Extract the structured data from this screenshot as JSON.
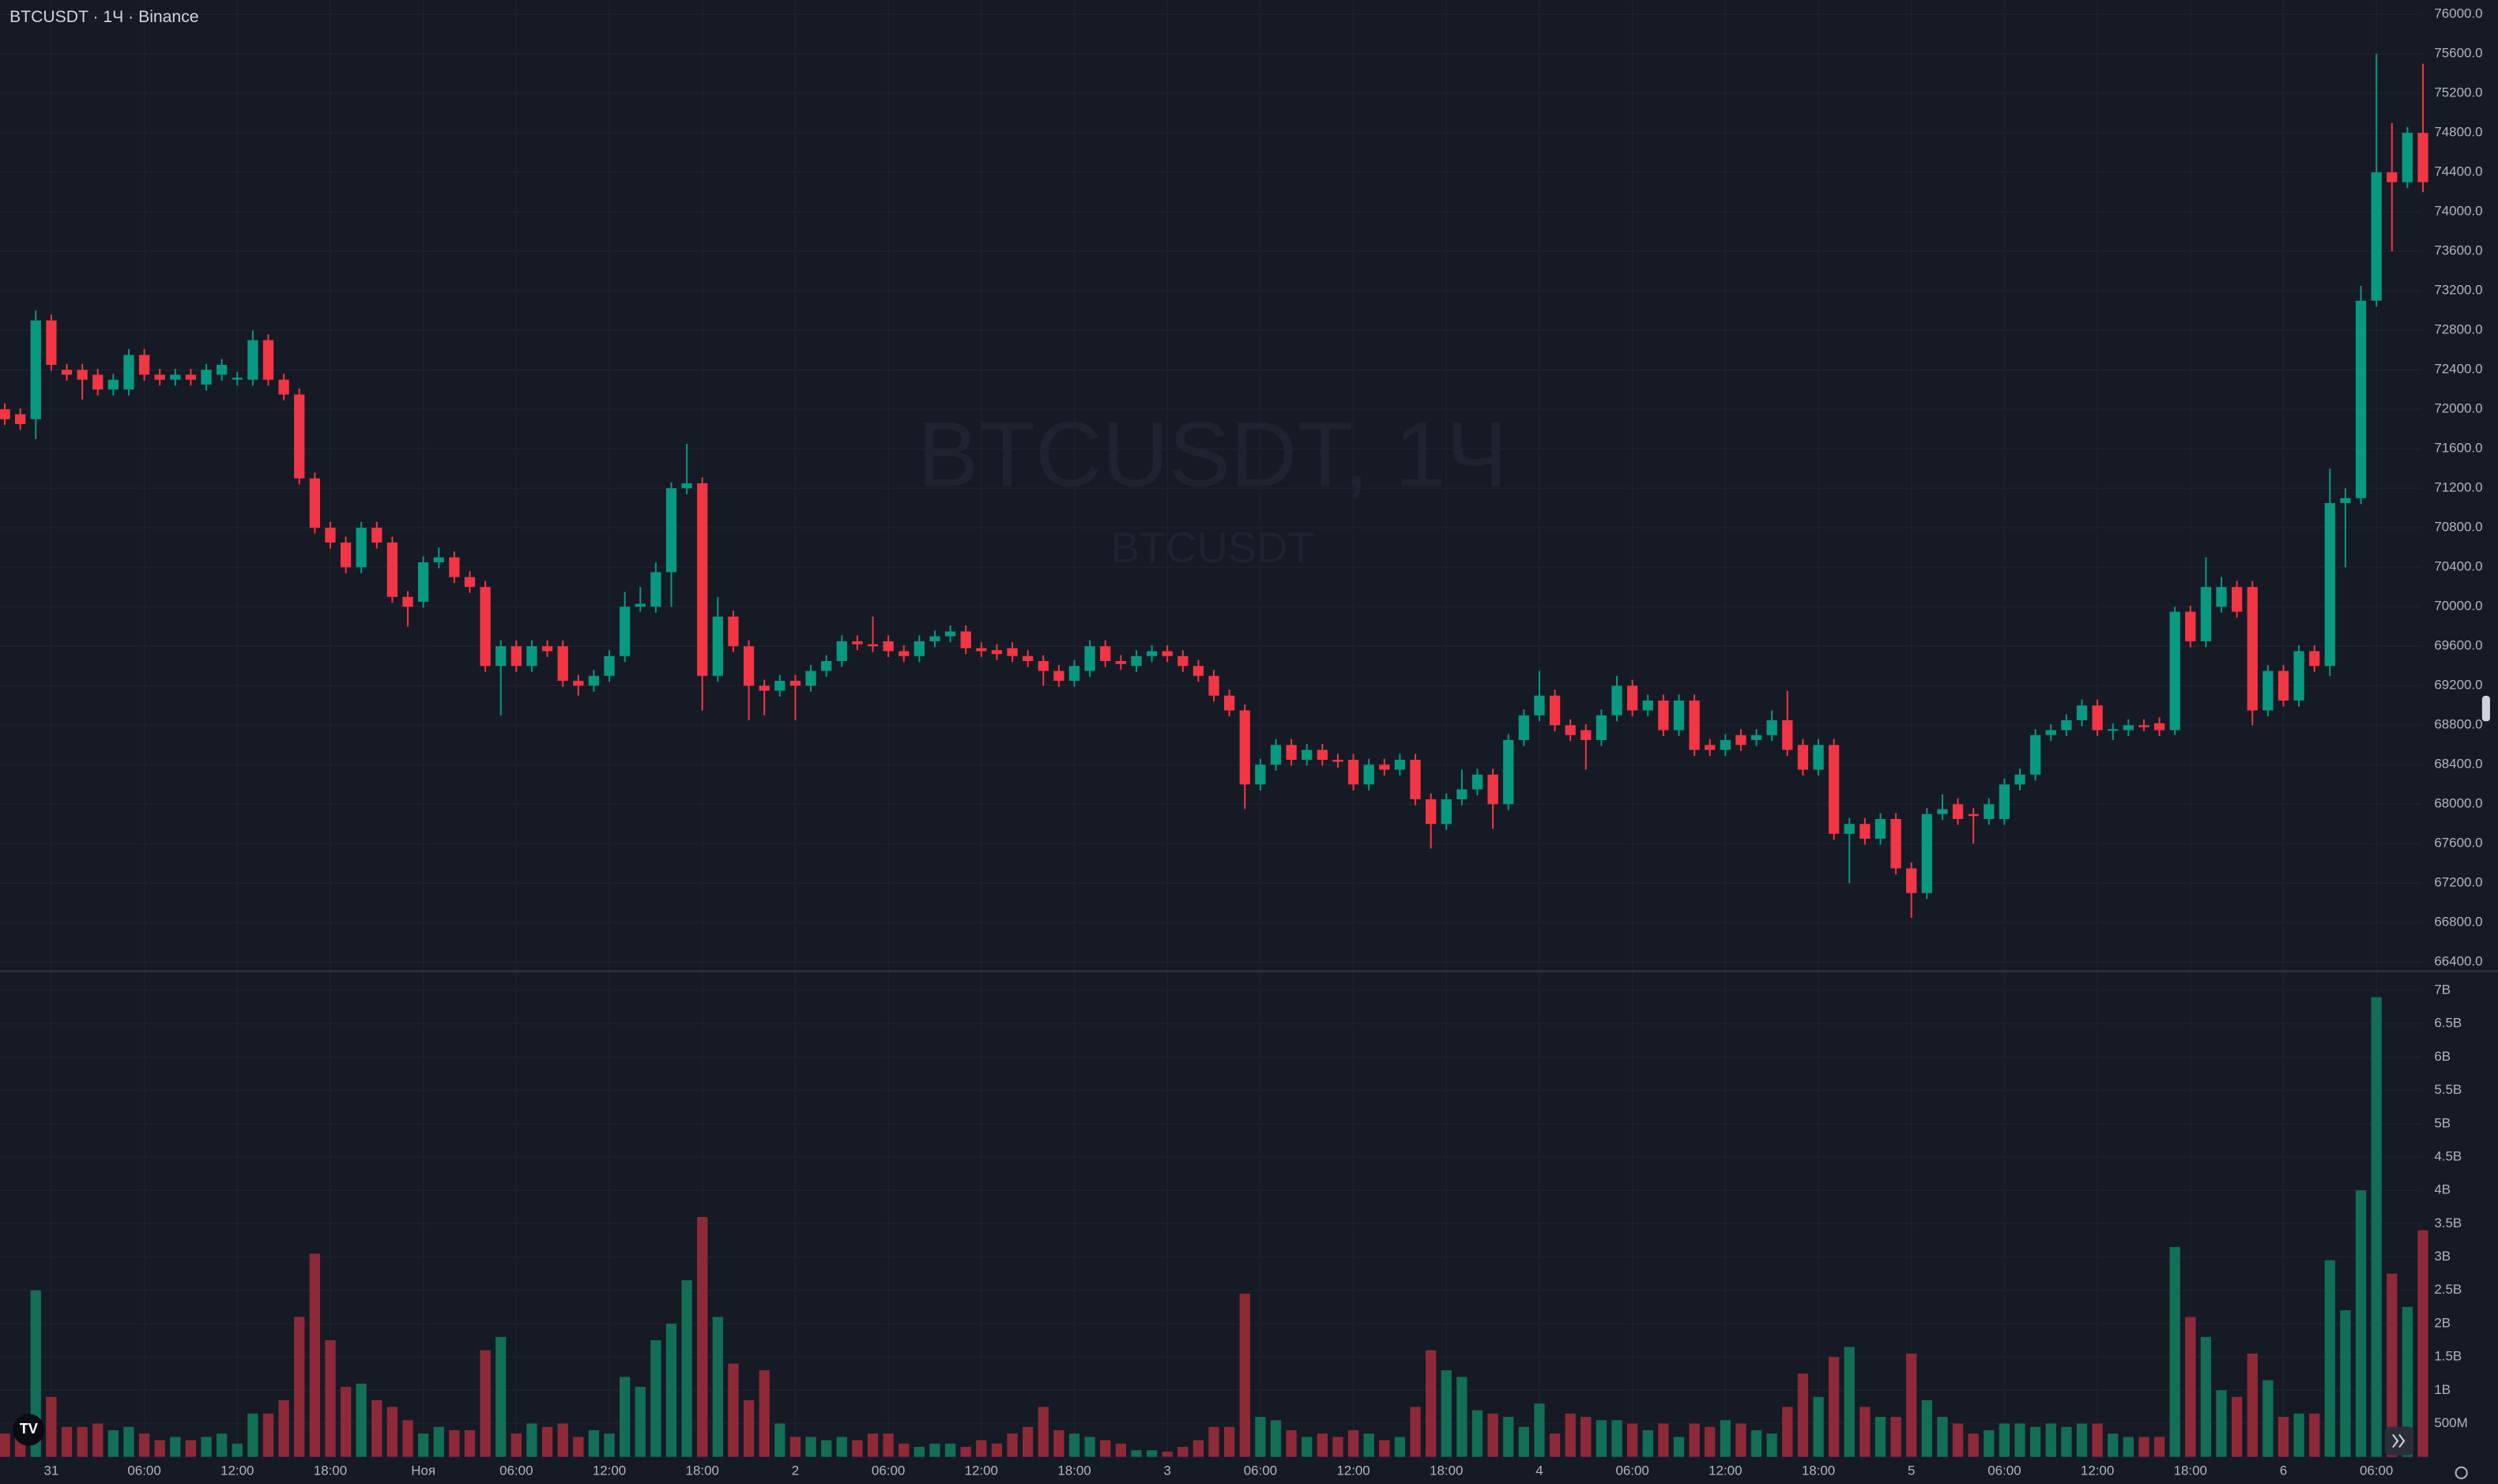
{
  "chart_data": {
    "type": "candlestick",
    "title": "BTCUSDT · 1Ч · Binance",
    "watermark": [
      "BTCUSDT, 1Ч",
      "BTCUSDT"
    ],
    "up_color": "#089981",
    "down_color": "#f23645",
    "grid": true,
    "categories": [
      null,
      null,
      null,
      "31",
      null,
      null,
      null,
      null,
      null,
      "06:00",
      null,
      null,
      null,
      null,
      null,
      "12:00",
      null,
      null,
      null,
      null,
      null,
      "18:00",
      null,
      null,
      null,
      null,
      null,
      "Ноя",
      null,
      null,
      null,
      null,
      null,
      "06:00",
      null,
      null,
      null,
      null,
      null,
      "12:00",
      null,
      null,
      null,
      null,
      null,
      "18:00",
      null,
      null,
      null,
      null,
      null,
      "2",
      null,
      null,
      null,
      null,
      null,
      "06:00",
      null,
      null,
      null,
      null,
      null,
      "12:00",
      null,
      null,
      null,
      null,
      null,
      "18:00",
      null,
      null,
      null,
      null,
      null,
      "3",
      null,
      null,
      null,
      null,
      null,
      "06:00",
      null,
      null,
      null,
      null,
      null,
      "12:00",
      null,
      null,
      null,
      null,
      null,
      "18:00",
      null,
      null,
      null,
      null,
      null,
      "4",
      null,
      null,
      null,
      null,
      null,
      "06:00",
      null,
      null,
      null,
      null,
      null,
      "12:00",
      null,
      null,
      null,
      null,
      null,
      "18:00",
      null,
      null,
      null,
      null,
      null,
      "5",
      null,
      null,
      null,
      null,
      null,
      "06:00",
      null,
      null,
      null,
      null,
      null,
      "12:00",
      null,
      null,
      null,
      null,
      null,
      "18:00",
      null,
      null,
      null,
      null,
      null,
      "6",
      null,
      null,
      null,
      null,
      null,
      "06:00",
      null,
      null,
      null
    ],
    "open": [
      72000,
      71950,
      71900,
      72900,
      72400,
      72400,
      72350,
      72200,
      72200,
      72550,
      72350,
      72300,
      72350,
      72250,
      72350,
      72300,
      72300,
      72700,
      72300,
      72150,
      71300,
      70800,
      70650,
      70400,
      70800,
      70650,
      70100,
      70050,
      70450,
      70500,
      70300,
      70200,
      69400,
      69600,
      69400,
      69600,
      69600,
      69250,
      69200,
      69300,
      69500,
      70000,
      70000,
      70350,
      71200,
      71250,
      69300,
      69900,
      69600,
      69200,
      69150,
      69250,
      69200,
      69350,
      69450,
      69650,
      69620,
      69650,
      69550,
      69500,
      69650,
      69700,
      69750,
      69580,
      69560,
      69580,
      69500,
      69450,
      69350,
      69250,
      69350,
      69600,
      69450,
      69400,
      69500,
      69550,
      69500,
      69400,
      69300,
      69100,
      68950,
      68200,
      68400,
      68600,
      68450,
      68550,
      68450,
      68450,
      68200,
      68400,
      68350,
      68450,
      68050,
      67800,
      68050,
      68150,
      68300,
      68000,
      68650,
      68900,
      69100,
      68800,
      68750,
      68650,
      68900,
      69200,
      68950,
      69050,
      68750,
      69050,
      68600,
      68550,
      68700,
      68650,
      68700,
      68850,
      68600,
      68350,
      68600,
      67700,
      67800,
      67650,
      67850,
      67350,
      67100,
      67900,
      68000,
      67900,
      67850,
      67850,
      68200,
      68300,
      68700,
      68750,
      68850,
      69000,
      68750,
      68750,
      68800,
      68820,
      68750,
      69950,
      69650,
      70000,
      70200,
      70200,
      68950,
      69350,
      69050,
      69550,
      69400,
      71050,
      71100,
      73100,
      74400,
      74300,
      74800
    ],
    "high": [
      72060,
      72010,
      73000,
      72960,
      72460,
      72460,
      72410,
      72360,
      72610,
      72610,
      72410,
      72410,
      72410,
      72460,
      72510,
      72380,
      72800,
      72760,
      72360,
      72210,
      71360,
      70860,
      70710,
      70860,
      70860,
      70710,
      70160,
      70510,
      70600,
      70560,
      70360,
      70260,
      69660,
      69660,
      69660,
      69660,
      69660,
      69310,
      69360,
      69560,
      70150,
      70200,
      70450,
      71260,
      71650,
      71310,
      70100,
      69960,
      69660,
      69260,
      69310,
      69310,
      69410,
      69510,
      69710,
      69710,
      69900,
      69710,
      69610,
      69710,
      69760,
      69810,
      69810,
      69640,
      69620,
      69640,
      69560,
      69510,
      69410,
      69460,
      69660,
      69660,
      69510,
      69560,
      69610,
      69610,
      69560,
      69460,
      69360,
      69160,
      69010,
      68460,
      68660,
      68660,
      68610,
      68610,
      68510,
      68510,
      68460,
      68460,
      68510,
      68510,
      68110,
      68110,
      68350,
      68360,
      68360,
      68710,
      68960,
      69350,
      69160,
      68860,
      68810,
      68960,
      69300,
      69260,
      69110,
      69110,
      69110,
      69110,
      68660,
      68710,
      68760,
      68760,
      68950,
      69150,
      68660,
      68660,
      68660,
      67860,
      67860,
      67910,
      67910,
      67410,
      67960,
      68100,
      68060,
      67960,
      68060,
      68260,
      68360,
      68760,
      68810,
      68910,
      69060,
      69060,
      68820,
      68860,
      68860,
      68880,
      70000,
      70010,
      70500,
      70300,
      70260,
      70260,
      69410,
      69410,
      69610,
      69610,
      71400,
      71200,
      73250,
      75600,
      74900,
      74860,
      75500
    ],
    "low": [
      71840,
      71790,
      71700,
      72390,
      72290,
      72100,
      72140,
      72140,
      72140,
      72290,
      72240,
      72240,
      72240,
      72190,
      72290,
      72240,
      72240,
      72240,
      72090,
      71240,
      70740,
      70590,
      70340,
      70340,
      70590,
      70040,
      69800,
      69990,
      70390,
      70240,
      70140,
      69340,
      68900,
      69340,
      69340,
      69490,
      69190,
      69100,
      69140,
      69240,
      69440,
      69950,
      69940,
      70000,
      71140,
      68950,
      69240,
      69540,
      68850,
      68900,
      69090,
      68850,
      69140,
      69290,
      69390,
      69560,
      69540,
      69490,
      69440,
      69440,
      69590,
      69640,
      69520,
      69490,
      69460,
      69440,
      69390,
      69200,
      69190,
      69190,
      69290,
      69390,
      69360,
      69340,
      69440,
      69440,
      69340,
      69240,
      69040,
      68890,
      67950,
      68140,
      68340,
      68390,
      68390,
      68390,
      68370,
      68140,
      68140,
      68290,
      68290,
      67990,
      67550,
      67740,
      67990,
      68090,
      67750,
      67940,
      68590,
      68840,
      68740,
      68640,
      68350,
      68590,
      68840,
      68890,
      68890,
      68690,
      68690,
      68490,
      68490,
      68490,
      68540,
      68590,
      68640,
      68490,
      68290,
      68290,
      67640,
      67200,
      67590,
      67590,
      67290,
      66850,
      67040,
      67840,
      67790,
      67600,
      67790,
      67790,
      68140,
      68240,
      68640,
      68690,
      68790,
      68690,
      68650,
      68690,
      68740,
      68690,
      68700,
      69590,
      69590,
      69940,
      69890,
      68800,
      68890,
      68990,
      68990,
      69340,
      69300,
      70400,
      71040,
      73040,
      73600,
      74240,
      74200
    ],
    "close": [
      71900,
      71850,
      72900,
      72450,
      72350,
      72300,
      72200,
      72300,
      72550,
      72350,
      72300,
      72350,
      72300,
      72400,
      72450,
      72320,
      72700,
      72300,
      72150,
      71300,
      70800,
      70650,
      70400,
      70800,
      70650,
      70100,
      70000,
      70450,
      70500,
      70300,
      70200,
      69400,
      69600,
      69400,
      69600,
      69550,
      69250,
      69200,
      69300,
      69500,
      70000,
      70030,
      70350,
      71200,
      71250,
      69300,
      69900,
      69600,
      69200,
      69150,
      69250,
      69200,
      69350,
      69450,
      69650,
      69620,
      69600,
      69550,
      69500,
      69650,
      69700,
      69750,
      69580,
      69550,
      69520,
      69500,
      69450,
      69350,
      69250,
      69400,
      69600,
      69450,
      69420,
      69500,
      69550,
      69500,
      69400,
      69300,
      69100,
      68950,
      68200,
      68400,
      68600,
      68450,
      68550,
      68450,
      68430,
      68200,
      68400,
      68350,
      68450,
      68050,
      67800,
      68050,
      68150,
      68300,
      68000,
      68650,
      68900,
      69100,
      68800,
      68700,
      68650,
      68900,
      69200,
      68950,
      69050,
      68750,
      69050,
      68550,
      68550,
      68650,
      68600,
      68700,
      68850,
      68550,
      68350,
      68600,
      67700,
      67800,
      67650,
      67850,
      67350,
      67100,
      67900,
      67950,
      67850,
      67880,
      68000,
      68200,
      68300,
      68700,
      68750,
      68850,
      69000,
      68750,
      68760,
      68800,
      68780,
      68750,
      69950,
      69650,
      70200,
      70200,
      69950,
      68950,
      69350,
      69050,
      69550,
      69400,
      71050,
      71100,
      73100,
      74400,
      74300,
      74800,
      74300
    ],
    "ylim": [
      66340,
      76145
    ],
    "yticks": [
      {
        "value": 76000,
        "label": "76000.0"
      },
      {
        "value": 75600,
        "label": "75600.0"
      },
      {
        "value": 75200,
        "label": "75200.0"
      },
      {
        "value": 74800,
        "label": "74800.0"
      },
      {
        "value": 74400,
        "label": "74400.0"
      },
      {
        "value": 74000,
        "label": "74000.0"
      },
      {
        "value": 73600,
        "label": "73600.0"
      },
      {
        "value": 73200,
        "label": "73200.0"
      },
      {
        "value": 72800,
        "label": "72800.0"
      },
      {
        "value": 72400,
        "label": "72400.0"
      },
      {
        "value": 72000,
        "label": "72000.0"
      },
      {
        "value": 71600,
        "label": "71600.0"
      },
      {
        "value": 71200,
        "label": "71200.0"
      },
      {
        "value": 70800,
        "label": "70800.0"
      },
      {
        "value": 70400,
        "label": "70400.0"
      },
      {
        "value": 70000,
        "label": "70000.0"
      },
      {
        "value": 69600,
        "label": "69600.0"
      },
      {
        "value": 69200,
        "label": "69200.0"
      },
      {
        "value": 68800,
        "label": "68800.0"
      },
      {
        "value": 68400,
        "label": "68400.0"
      },
      {
        "value": 68000,
        "label": "68000.0"
      },
      {
        "value": 67600,
        "label": "67600.0"
      },
      {
        "value": 67200,
        "label": "67200.0"
      },
      {
        "value": 66800,
        "label": "66800.0"
      },
      {
        "value": 66400,
        "label": "66400.0"
      }
    ],
    "volume": {
      "up_color": "#136e56",
      "down_color": "#8e2a38",
      "values": [
        350000000.0,
        400000000.0,
        2500000000.0,
        900000000.0,
        450000000.0,
        450000000.0,
        500000000.0,
        400000000.0,
        450000000.0,
        350000000.0,
        250000000.0,
        300000000.0,
        250000000.0,
        300000000.0,
        350000000.0,
        200000000.0,
        650000000.0,
        650000000.0,
        850000000.0,
        2100000000.0,
        3050000000.0,
        1750000000.0,
        1050000000.0,
        1100000000.0,
        850000000.0,
        750000000.0,
        550000000.0,
        350000000.0,
        450000000.0,
        400000000.0,
        400000000.0,
        1600000000.0,
        1800000000.0,
        350000000.0,
        500000000.0,
        450000000.0,
        500000000.0,
        300000000.0,
        400000000.0,
        350000000.0,
        1200000000.0,
        1050000000.0,
        1750000000.0,
        2000000000.0,
        2650000000.0,
        3600000000.0,
        2100000000.0,
        1400000000.0,
        850000000.0,
        1300000000.0,
        500000000.0,
        300000000.0,
        300000000.0,
        250000000.0,
        300000000.0,
        250000000.0,
        350000000.0,
        350000000.0,
        200000000.0,
        150000000.0,
        200000000.0,
        200000000.0,
        150000000.0,
        250000000.0,
        200000000.0,
        350000000.0,
        450000000.0,
        750000000.0,
        400000000.0,
        350000000.0,
        300000000.0,
        250000000.0,
        200000000.0,
        100000000.0,
        100000000.0,
        80000000.0,
        150000000.0,
        250000000.0,
        450000000.0,
        450000000.0,
        2450000000.0,
        600000000.0,
        550000000.0,
        400000000.0,
        300000000.0,
        350000000.0,
        300000000.0,
        400000000.0,
        350000000.0,
        250000000.0,
        300000000.0,
        750000000.0,
        1600000000.0,
        1300000000.0,
        1200000000.0,
        700000000.0,
        650000000.0,
        600000000.0,
        450000000.0,
        800000000.0,
        350000000.0,
        650000000.0,
        600000000.0,
        550000000.0,
        550000000.0,
        500000000.0,
        400000000.0,
        500000000.0,
        300000000.0,
        500000000.0,
        450000000.0,
        550000000.0,
        500000000.0,
        400000000.0,
        350000000.0,
        750000000.0,
        1250000000.0,
        900000000.0,
        1500000000.0,
        1650000000.0,
        750000000.0,
        600000000.0,
        600000000.0,
        1550000000.0,
        850000000.0,
        600000000.0,
        500000000.0,
        350000000.0,
        400000000.0,
        500000000.0,
        500000000.0,
        450000000.0,
        500000000.0,
        450000000.0,
        500000000.0,
        500000000.0,
        350000000.0,
        300000000.0,
        300000000.0,
        300000000.0,
        3150000000.0,
        2100000000.0,
        1800000000.0,
        1000000000.0,
        900000000.0,
        1550000000.0,
        1150000000.0,
        600000000.0,
        650000000.0,
        650000000.0,
        2950000000.0,
        2200000000.0,
        4000000000.0,
        6900000000.0,
        2750000000.0,
        2250000000.0,
        3400000000.0
      ],
      "ylim": [
        0,
        7240000000.0
      ],
      "yticks": [
        {
          "value": 7000000000.0,
          "label": "7B"
        },
        {
          "value": 6500000000.0,
          "label": "6.5B"
        },
        {
          "value": 6000000000.0,
          "label": "6B"
        },
        {
          "value": 5500000000.0,
          "label": "5.5B"
        },
        {
          "value": 5000000000.0,
          "label": "5B"
        },
        {
          "value": 4500000000.0,
          "label": "4.5B"
        },
        {
          "value": 4000000000.0,
          "label": "4B"
        },
        {
          "value": 3500000000.0,
          "label": "3.5B"
        },
        {
          "value": 3000000000.0,
          "label": "3B"
        },
        {
          "value": 2500000000.0,
          "label": "2.5B"
        },
        {
          "value": 2000000000.0,
          "label": "2B"
        },
        {
          "value": 1500000000.0,
          "label": "1.5B"
        },
        {
          "value": 1000000000.0,
          "label": "1B"
        },
        {
          "value": 500000000.0,
          "label": "500M"
        }
      ]
    }
  }
}
